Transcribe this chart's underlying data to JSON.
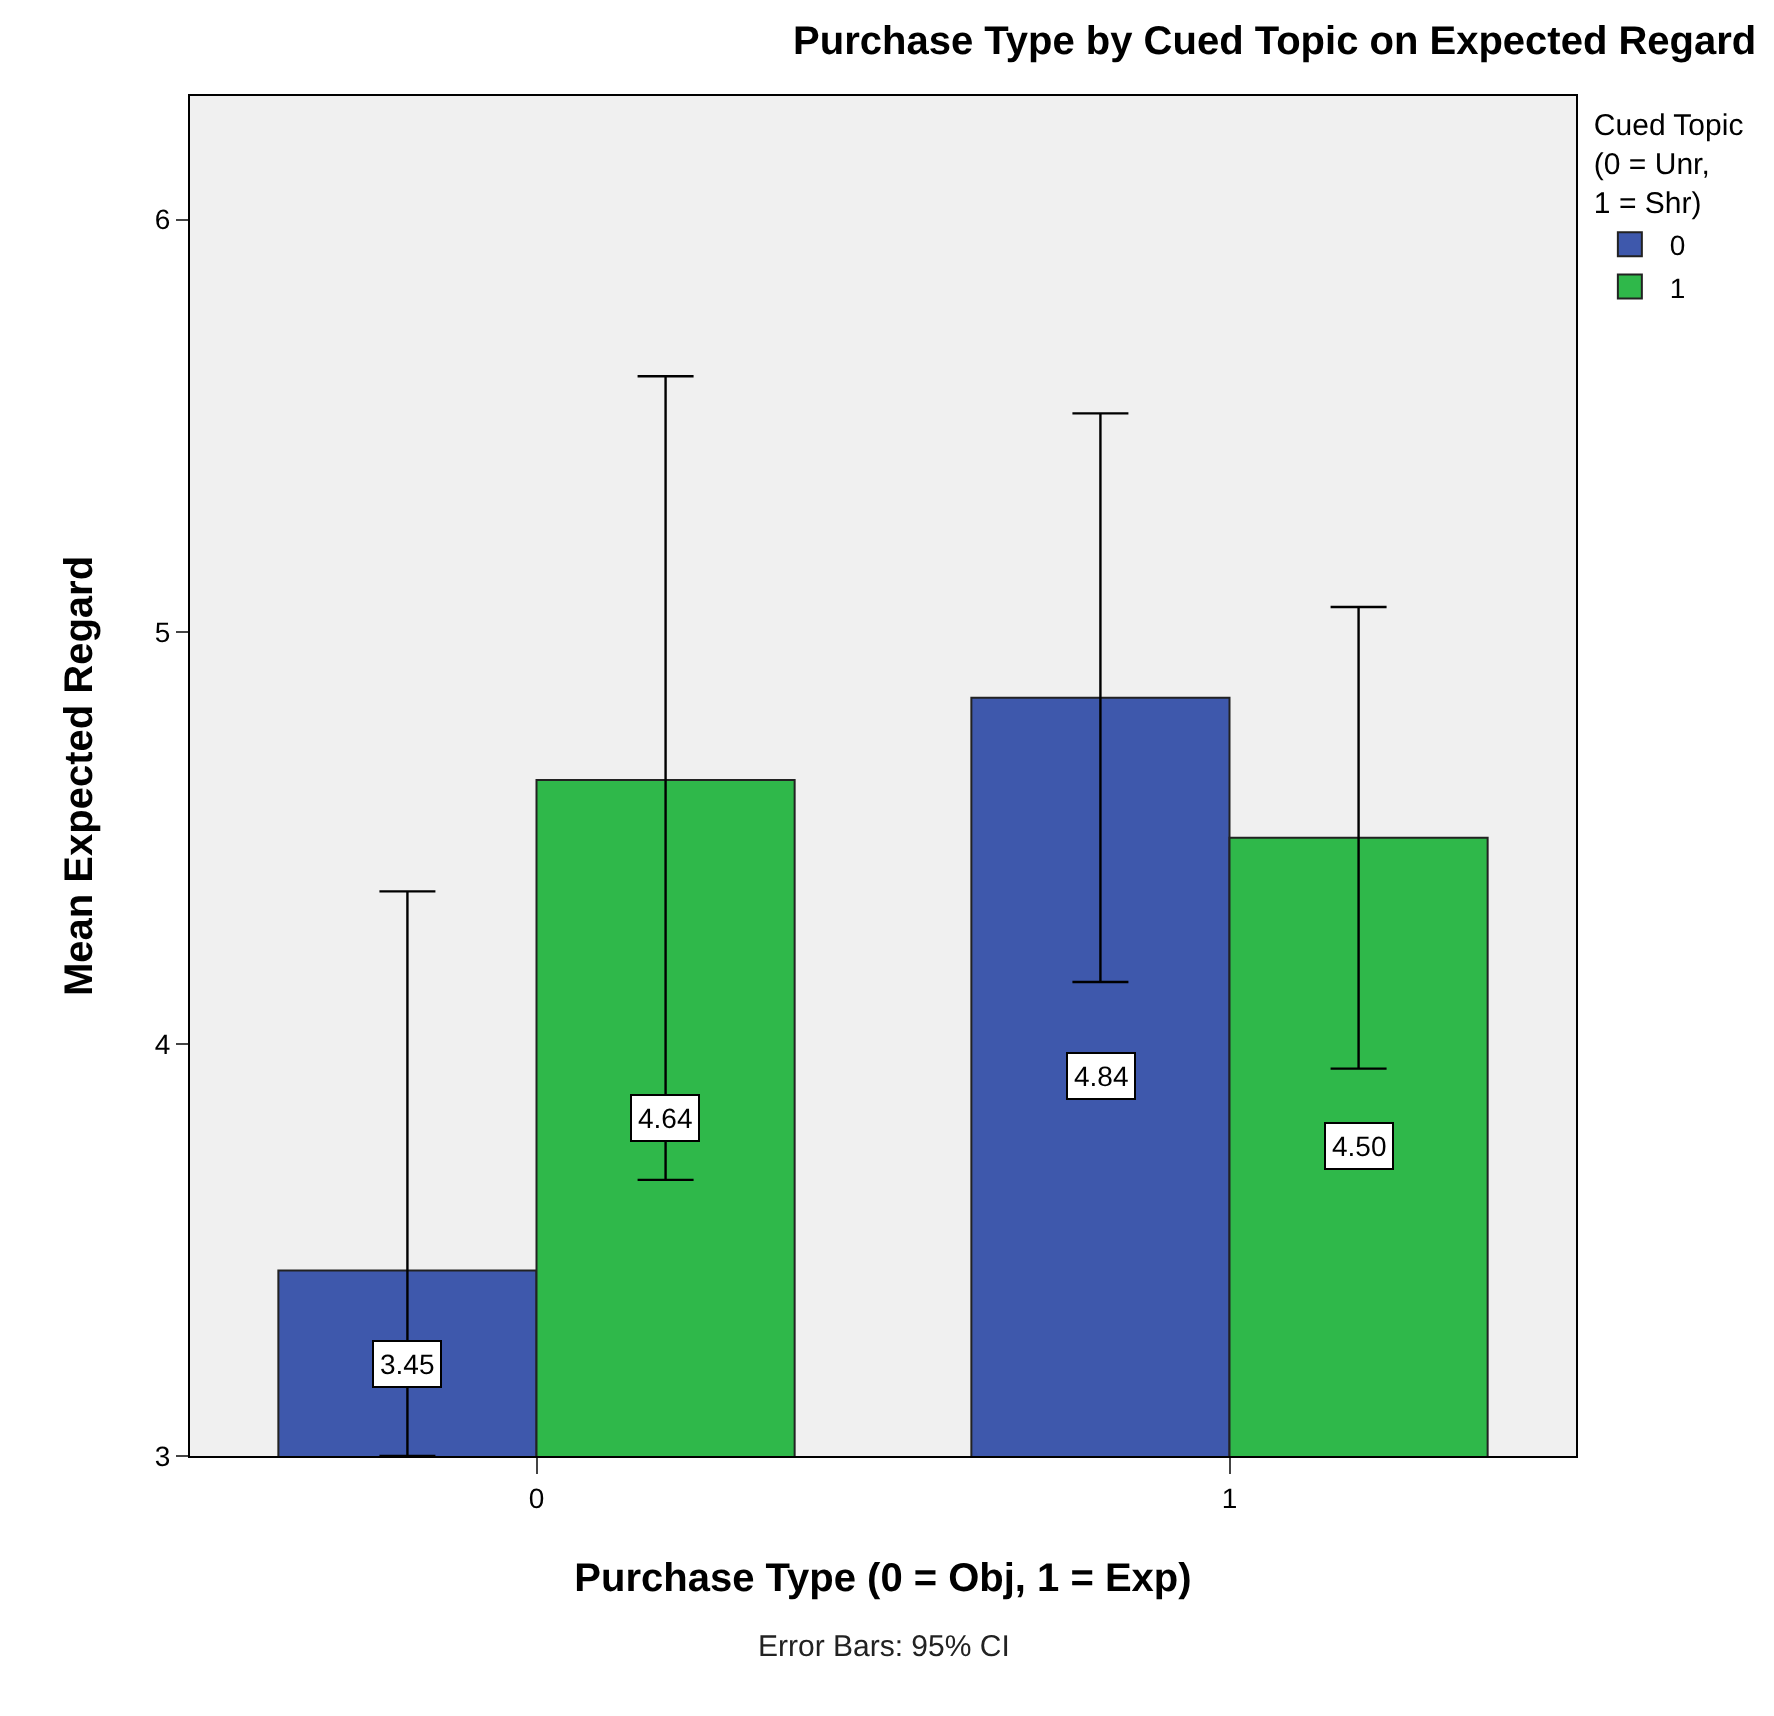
{
  "chart_data": {
    "type": "bar",
    "title": "Purchase Type by Cued Topic on Expected Regard",
    "xlabel": "Purchase Type (0 = Obj, 1 = Exp)",
    "ylabel": "Mean Expected Regard",
    "legend_title": "Cued Topic (0 = Unr, 1 = Shr)",
    "categories": [
      "0",
      "1"
    ],
    "series": [
      {
        "name": "0",
        "color": "#3e58ac",
        "values": [
          3.45,
          4.84
        ],
        "errors": [
          [
            3,
            4.37
          ],
          [
            4.15,
            5.53
          ]
        ],
        "value_labels": [
          "3.45",
          "4.84"
        ]
      },
      {
        "name": "1",
        "color": "#2fb84a",
        "values": [
          4.64,
          4.5
        ],
        "errors": [
          [
            3.67,
            5.62
          ],
          [
            3.94,
            5.06
          ]
        ],
        "value_labels": [
          "4.64",
          "4.50"
        ]
      }
    ],
    "ylim": [
      3,
      6.3
    ],
    "yticks": [
      3,
      4,
      5,
      6
    ],
    "grid": false,
    "legend": "top right",
    "annotations": [
      "Error Bars: 95% CI"
    ]
  }
}
